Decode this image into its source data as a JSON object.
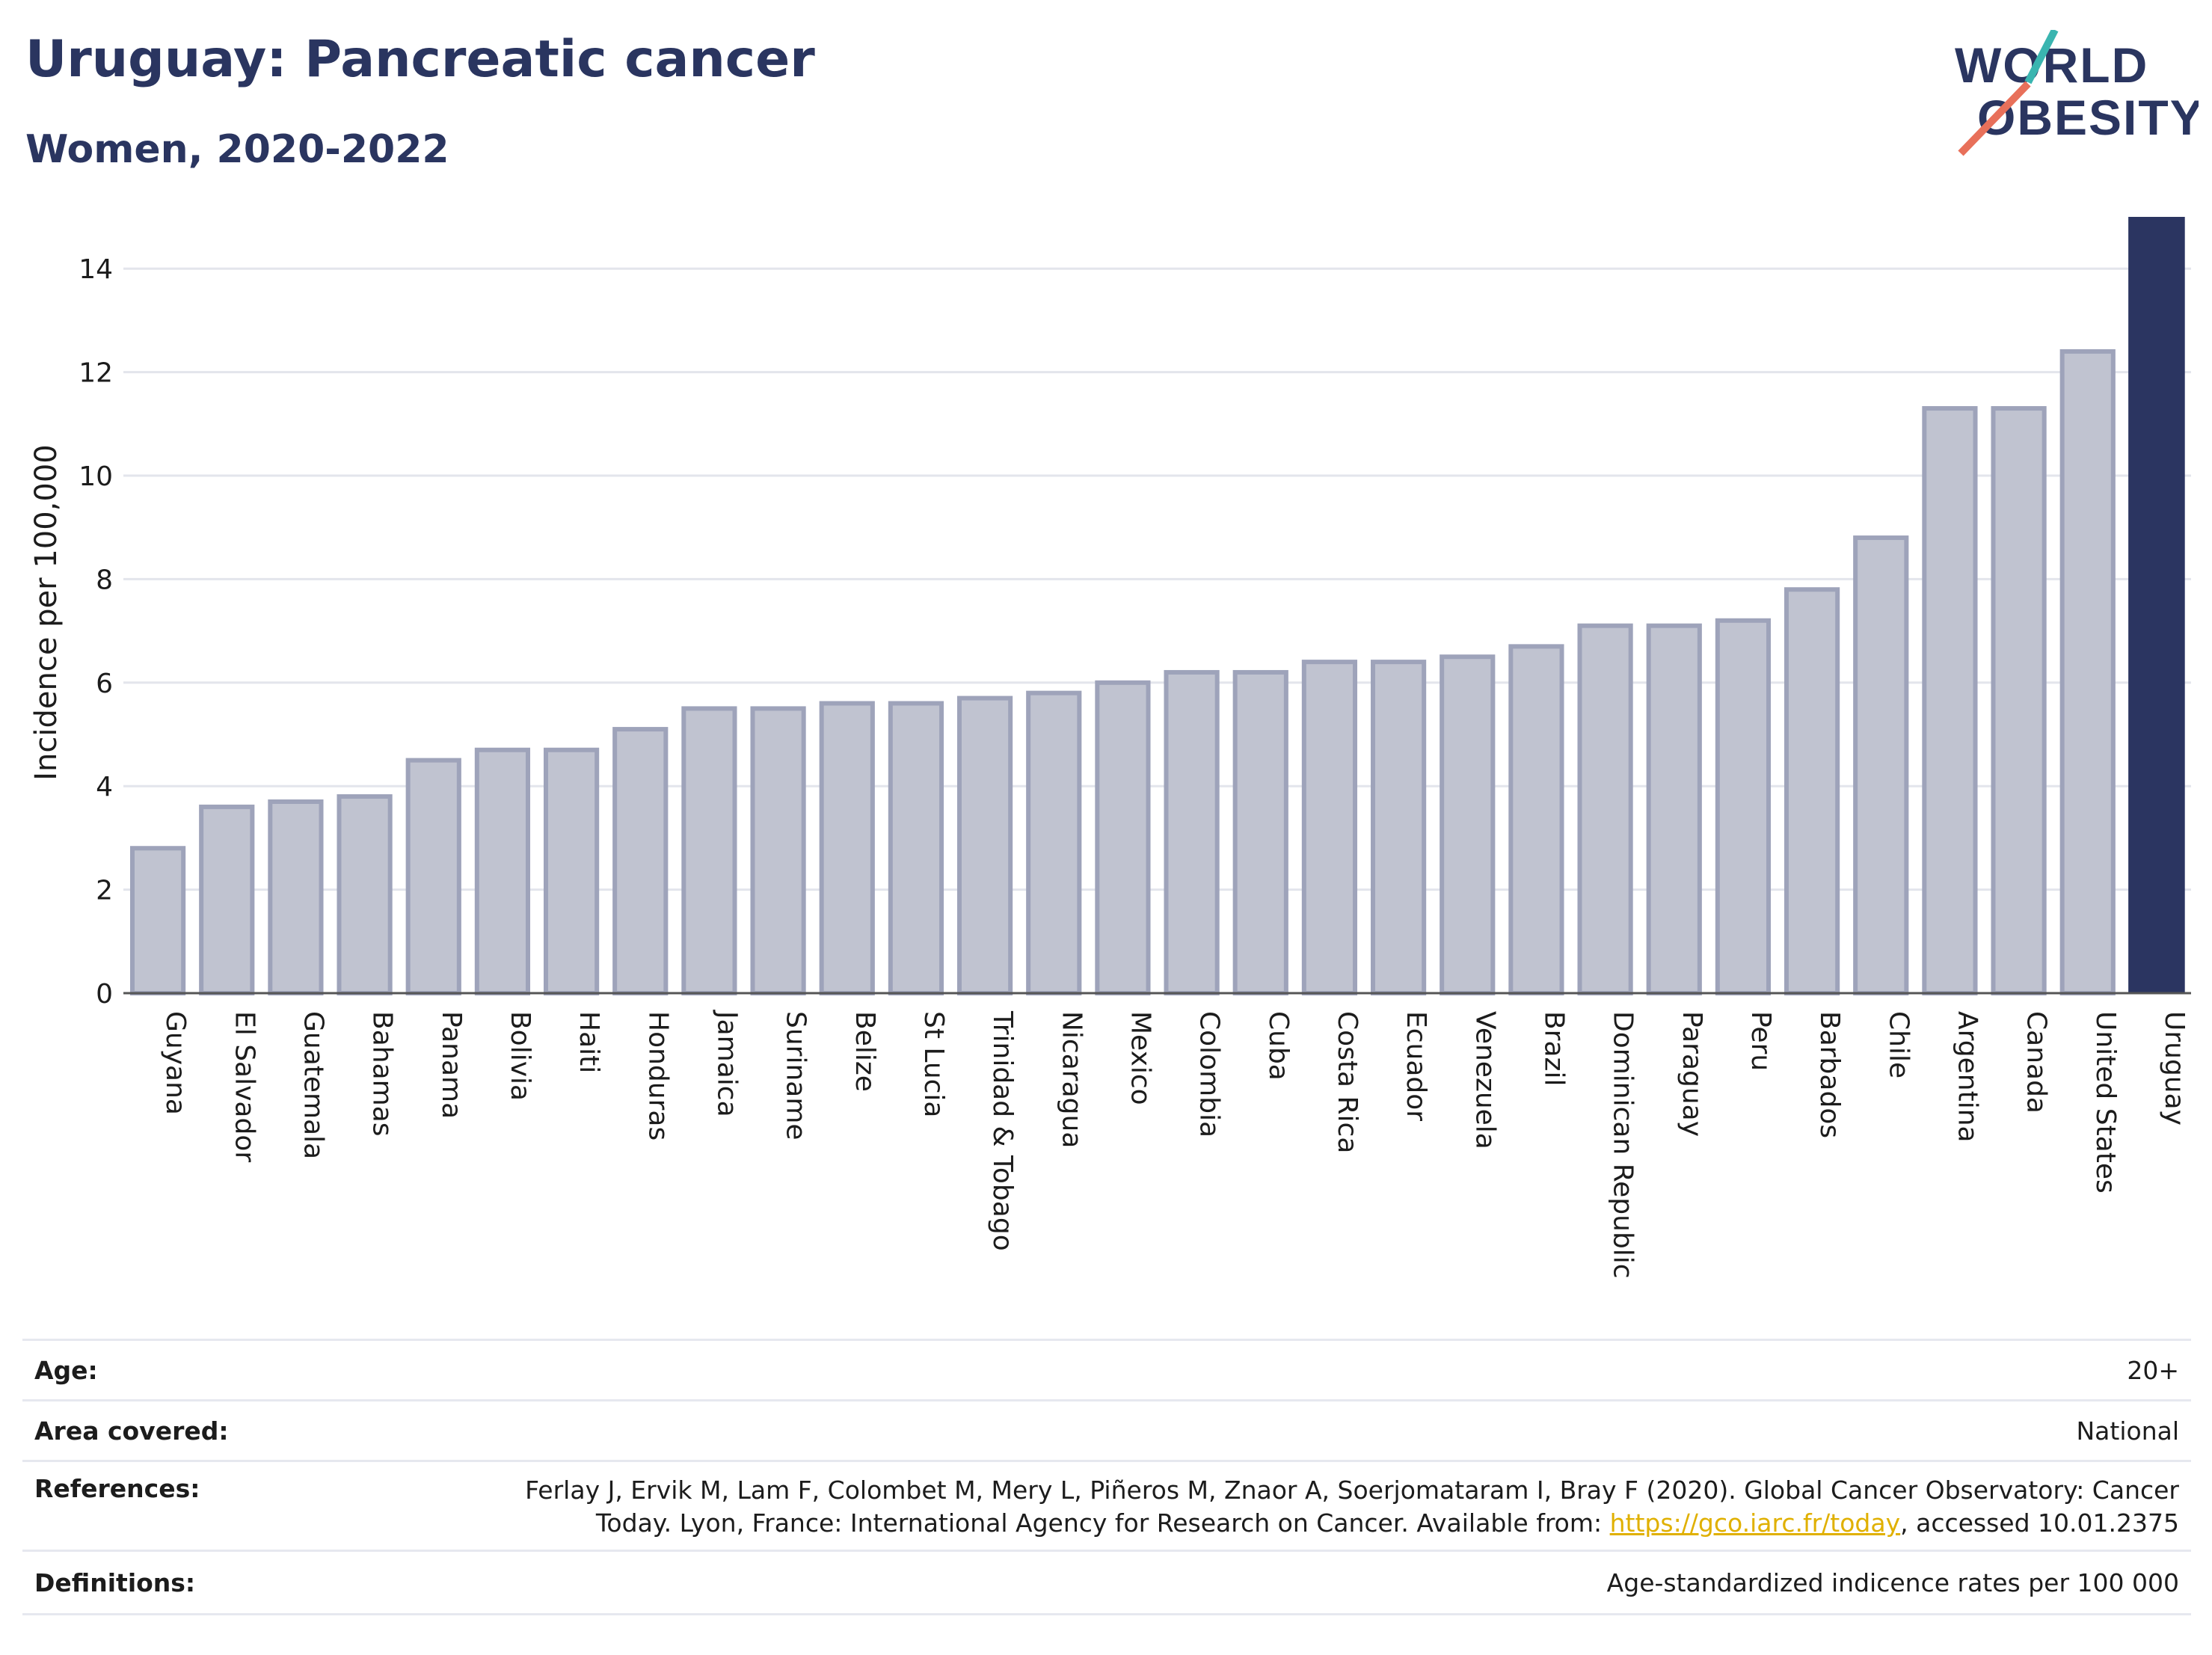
{
  "header": {
    "title": "Uruguay: Pancreatic cancer",
    "subtitle": "Women, 2020-2022"
  },
  "logo": {
    "line1": "WORLD",
    "line2": "OBESITY",
    "colors": {
      "text": "#2a3560",
      "teal": "#3ab5b0",
      "coral": "#e8705a"
    }
  },
  "colors": {
    "bar_fill": "#c0c3d0",
    "bar_stroke": "#9ea3ba",
    "highlight": "#2b3561",
    "grid": "#e3e5ec"
  },
  "chart_data": {
    "type": "bar",
    "ylabel": "Incidence per 100,000",
    "ylim": [
      0,
      15
    ],
    "yticks": [
      0,
      2,
      4,
      6,
      8,
      10,
      12,
      14
    ],
    "grid": true,
    "highlight": "Uruguay",
    "categories": [
      "Guyana",
      "El Salvador",
      "Guatemala",
      "Bahamas",
      "Panama",
      "Bolivia",
      "Haiti",
      "Honduras",
      "Jamaica",
      "Suriname",
      "Belize",
      "St Lucia",
      "Trinidad & Tobago",
      "Nicaragua",
      "Mexico",
      "Colombia",
      "Cuba",
      "Costa Rica",
      "Ecuador",
      "Venezuela",
      "Brazil",
      "Dominican Republic",
      "Paraguay",
      "Peru",
      "Barbados",
      "Chile",
      "Argentina",
      "Canada",
      "United States",
      "Uruguay"
    ],
    "values": [
      2.8,
      3.6,
      3.7,
      3.8,
      4.5,
      4.7,
      4.7,
      5.1,
      5.5,
      5.5,
      5.6,
      5.6,
      5.7,
      5.8,
      6.0,
      6.2,
      6.2,
      6.4,
      6.4,
      6.5,
      6.7,
      7.1,
      7.1,
      7.2,
      7.8,
      8.8,
      11.3,
      11.3,
      12.4,
      15.0
    ]
  },
  "footer": {
    "age_label": "Age:",
    "age_value": "20+",
    "area_label": "Area covered:",
    "area_value": "National",
    "references_label": "References:",
    "references_line1": "Ferlay J, Ervik M, Lam F, Colombet M, Mery L, Piñeros M, Znaor A, Soerjomataram I, Bray F (2020). Global Cancer Observatory: Cancer",
    "references_line2_pre": "Today. Lyon, France: International Agency for Research on Cancer. Available from: ",
    "references_link": "https://gco.iarc.fr/today",
    "references_line2_post": ", accessed 10.01.2375",
    "definitions_label": "Definitions:",
    "definitions_value": "Age-standardized indicence rates per 100 000"
  }
}
